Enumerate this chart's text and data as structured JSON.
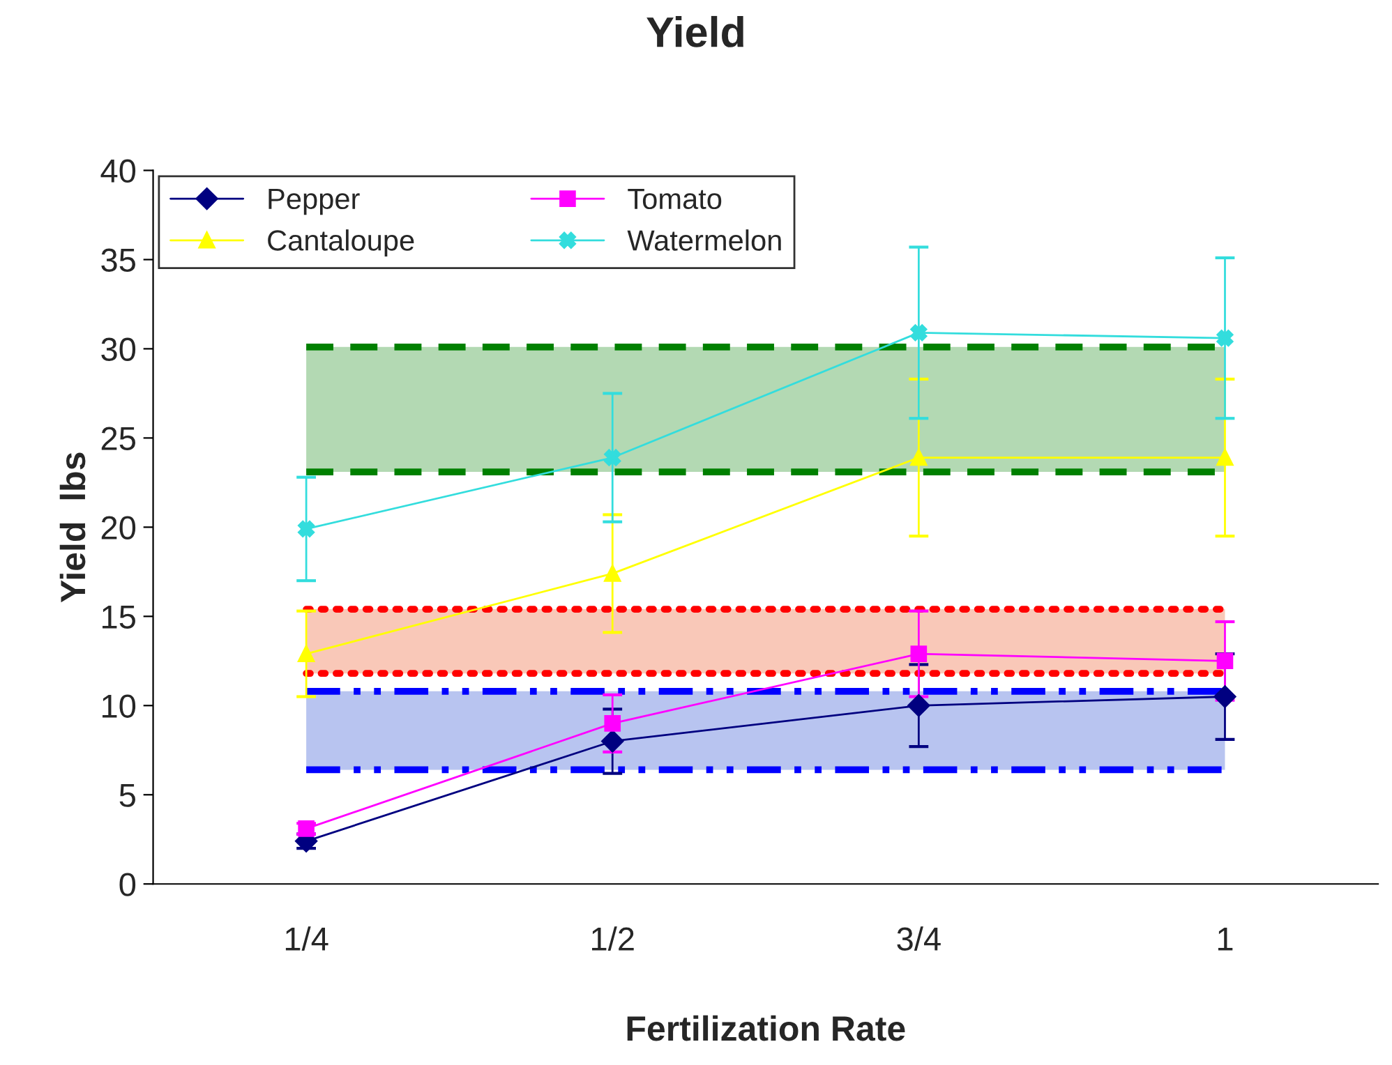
{
  "chart_data": {
    "type": "line",
    "title": "Yield",
    "xlabel": "Fertilization Rate",
    "ylabel": "Yield  lbs",
    "categories": [
      "1/4",
      "1/2",
      "3/4",
      "1"
    ],
    "series": [
      {
        "name": "Pepper",
        "color": "#000080",
        "marker": "diamond",
        "values": [
          2.4,
          8.0,
          10.0,
          10.5
        ],
        "errors": [
          0.4,
          1.8,
          2.3,
          2.4
        ]
      },
      {
        "name": "Tomato",
        "color": "#ff00ff",
        "marker": "square",
        "values": [
          3.1,
          9.0,
          12.9,
          12.5
        ],
        "errors": [
          0.3,
          1.6,
          2.4,
          2.2
        ]
      },
      {
        "name": "Cantaloupe",
        "color": "#ffff00",
        "marker": "triangle",
        "values": [
          12.9,
          17.4,
          23.9,
          23.9
        ],
        "errors": [
          2.4,
          3.3,
          4.4,
          4.4
        ]
      },
      {
        "name": "Watermelon",
        "color": "#33dddd",
        "marker": "cross",
        "values": [
          19.9,
          23.9,
          30.9,
          30.6
        ],
        "errors": [
          2.9,
          3.6,
          4.8,
          4.5
        ]
      }
    ],
    "bands": [
      {
        "axis": "y",
        "from": 23.1,
        "to": 30.1,
        "color": "#b3d9b3"
      },
      {
        "axis": "y",
        "from": 11.8,
        "to": 15.4,
        "color": "#f9c8b8"
      },
      {
        "axis": "y",
        "from": 6.4,
        "to": 10.8,
        "color": "#b8c4f0"
      }
    ],
    "ref_lines": [
      {
        "axis": "y",
        "value": 23.1,
        "color": "#008000",
        "line_style": "dashed"
      },
      {
        "axis": "y",
        "value": 30.1,
        "color": "#008000",
        "line_style": "dashed"
      },
      {
        "axis": "y",
        "value": 11.8,
        "color": "#ff0000",
        "line_style": "dotted"
      },
      {
        "axis": "y",
        "value": 15.4,
        "color": "#ff0000",
        "line_style": "dotted"
      },
      {
        "axis": "y",
        "value": 6.4,
        "color": "#0000ff",
        "line_style": "dashdot"
      },
      {
        "axis": "y",
        "value": 10.8,
        "color": "#0000ff",
        "line_style": "dashdot"
      }
    ],
    "ylim": [
      0,
      40
    ],
    "yticks": [
      0,
      5,
      10,
      15,
      20,
      25,
      30,
      35,
      40
    ],
    "grid": false,
    "legend": "top left"
  }
}
